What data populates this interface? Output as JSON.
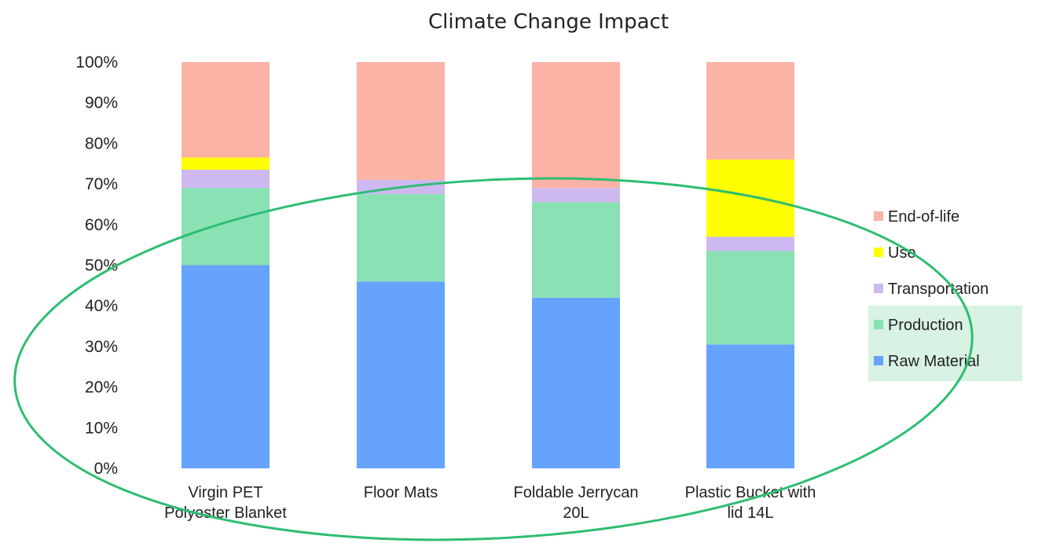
{
  "chart_data": {
    "type": "bar",
    "stacked": true,
    "title": "Climate Change Impact",
    "ylim": [
      0,
      100
    ],
    "y_ticks": [
      "0%",
      "10%",
      "20%",
      "30%",
      "40%",
      "50%",
      "60%",
      "70%",
      "80%",
      "90%",
      "100%"
    ],
    "categories": [
      [
        "Virgin PET",
        "Polyester Blanket"
      ],
      [
        "Floor Mats"
      ],
      [
        "Foldable Jerrycan",
        "20L"
      ],
      [
        "Plastic Bucket with",
        "lid 14L"
      ]
    ],
    "series": [
      {
        "name": "Raw Material",
        "color": "#65a3ff",
        "values": [
          50,
          46,
          42,
          30.5
        ]
      },
      {
        "name": "Production",
        "color": "#8ae1b3",
        "values": [
          19,
          21.5,
          23.5,
          23
        ]
      },
      {
        "name": "Transportation",
        "color": "#cdb9f0",
        "values": [
          4.5,
          3.5,
          3.5,
          3.5
        ]
      },
      {
        "name": "Use",
        "color": "#ffff00",
        "values": [
          3,
          0,
          0,
          19
        ]
      },
      {
        "name": "End-of-life",
        "color": "#fbb3a5",
        "values": [
          23.5,
          29,
          31,
          24
        ]
      }
    ],
    "legend_position": "right",
    "legend_highlight": [
      "Production",
      "Raw Material"
    ],
    "annotation": {
      "shape": "ellipse",
      "color": "#2dbd72"
    },
    "grid": false
  }
}
